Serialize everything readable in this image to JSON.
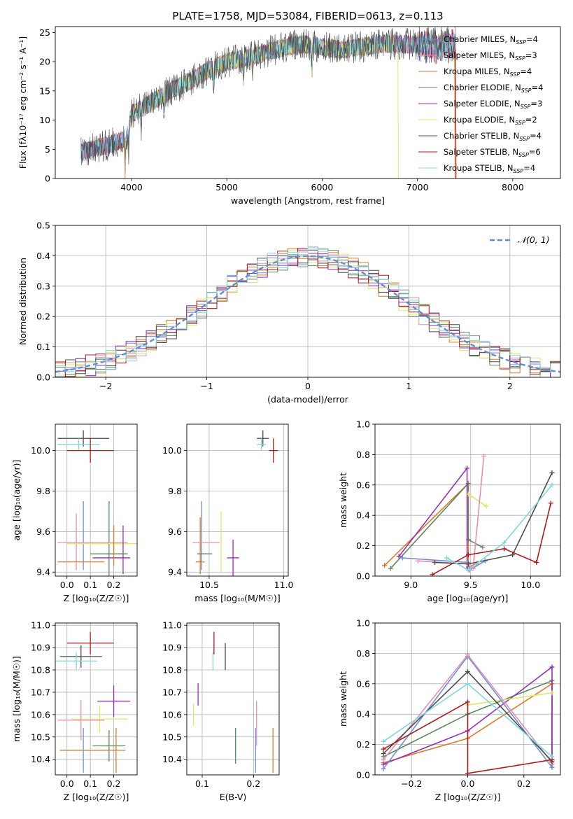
{
  "colors": {
    "Chabrier MILES": "#6f8fd8",
    "Salpeter MILES": "#e78fb4",
    "Kroupa MILES": "#e07b28",
    "Chabrier ELODIE": "#5a8a5a",
    "Salpeter ELODIE": "#9b2fb8",
    "Kroupa ELODIE": "#dfe86a",
    "Chabrier STELIB": "#4d4d4d",
    "Salpeter STELIB": "#b01c1c",
    "Kroupa STELIB": "#7fd8e0",
    "normal": "#5b8fd8"
  },
  "chart_data": [
    {
      "id": "spectrum",
      "type": "line",
      "title": "PLATE=1758, MJD=53084, FIBERID=0613, z=0.113",
      "xlabel": "wavelength [Angstrom, rest frame]",
      "ylabel": "Flux [fλ10⁻¹⁷ erg cm⁻² s⁻¹ A⁻¹]",
      "xlim": [
        3200,
        8500
      ],
      "ylim": [
        0,
        26
      ],
      "xticks": [
        4000,
        5000,
        6000,
        7000,
        8000
      ],
      "yticks": [
        0,
        5,
        10,
        15,
        20,
        25
      ],
      "grid": false,
      "legend_position": "right",
      "legend": [
        {
          "label": "Chabrier MILES, N",
          "sub": "SSP",
          "eq": "=4",
          "key": "Chabrier MILES"
        },
        {
          "label": "Salpeter MILES, N",
          "sub": "SSP",
          "eq": "=3",
          "key": "Salpeter MILES"
        },
        {
          "label": "Kroupa MILES, N",
          "sub": "SSP",
          "eq": "=4",
          "key": "Kroupa MILES"
        },
        {
          "label": "Chabrier ELODIE, N",
          "sub": "SSP",
          "eq": "=4",
          "key": "Chabrier ELODIE"
        },
        {
          "label": "Salpeter ELODIE, N",
          "sub": "SSP",
          "eq": "=3",
          "key": "Salpeter ELODIE"
        },
        {
          "label": "Kroupa ELODIE, N",
          "sub": "SSP",
          "eq": "=2",
          "key": "Kroupa ELODIE"
        },
        {
          "label": "Chabrier STELIB, N",
          "sub": "SSP",
          "eq": "=4",
          "key": "Chabrier STELIB"
        },
        {
          "label": "Salpeter STELIB, N",
          "sub": "SSP",
          "eq": "=6",
          "key": "Salpeter STELIB"
        },
        {
          "label": "Kroupa STELIB, N",
          "sub": "SSP",
          "eq": "=4",
          "key": "Kroupa STELIB"
        }
      ],
      "continuum": [
        [
          3400,
          4.3
        ],
        [
          3600,
          5
        ],
        [
          3800,
          6
        ],
        [
          3950,
          7
        ],
        [
          4000,
          11
        ],
        [
          4200,
          13
        ],
        [
          4400,
          15
        ],
        [
          4600,
          16.5
        ],
        [
          4800,
          18.5
        ],
        [
          5000,
          20
        ],
        [
          5200,
          20.5
        ],
        [
          5400,
          21.5
        ],
        [
          5600,
          22.5
        ],
        [
          5800,
          23
        ],
        [
          6000,
          22.5
        ],
        [
          6200,
          22
        ],
        [
          6400,
          22.5
        ],
        [
          6600,
          23
        ],
        [
          6800,
          23
        ],
        [
          7000,
          23
        ],
        [
          7200,
          22.5
        ],
        [
          7400,
          23
        ]
      ],
      "absorption_dips": [
        [
          3934,
          5
        ],
        [
          3969,
          4
        ],
        [
          4102,
          3
        ],
        [
          4340,
          3
        ],
        [
          4861,
          3
        ],
        [
          5175,
          3
        ],
        [
          5270,
          2
        ],
        [
          5893,
          4
        ],
        [
          6563,
          1.5
        ]
      ],
      "series_extents": {
        "Kroupa MILES": [
          3470,
          7400
        ],
        "Salpeter STELIB": [
          3470,
          7400
        ],
        "Chabrier STELIB": [
          3470,
          7400
        ],
        "Kroupa STELIB": [
          3470,
          7400
        ],
        "Chabrier MILES": [
          3470,
          7400
        ],
        "Salpeter MILES": [
          3470,
          7400
        ],
        "Chabrier ELODIE": [
          3470,
          7400
        ],
        "Salpeter ELODIE": [
          3470,
          7400
        ],
        "Kroupa ELODIE": [
          3920,
          6790
        ]
      }
    },
    {
      "id": "residuals",
      "type": "histogram",
      "xlabel": "(data-model)/error",
      "ylabel": "Normed distribution",
      "xlim": [
        -2.5,
        2.5
      ],
      "ylim": [
        0,
        0.5
      ],
      "xticks": [
        -2,
        -1,
        0,
        1,
        2
      ],
      "xtick_labels": [
        "−2",
        "−1",
        "0",
        "1",
        "2"
      ],
      "yticks": [
        0,
        0.1,
        0.2,
        0.3,
        0.4,
        0.5
      ],
      "grid": true,
      "legend_label": "𝒩(0, 1)",
      "legend_position": "top-right",
      "bin_width": 0.1
    },
    {
      "id": "age-vs-Z",
      "type": "scatter-errorbar",
      "xlabel": "Z [log₁₀(Z/Z☉)]",
      "ylabel": "age  [log₁₀(age/yr)]",
      "xlim": [
        -0.05,
        0.3
      ],
      "ylim": [
        9.38,
        10.13
      ],
      "xticks": [
        0,
        0.1,
        0.2
      ],
      "yticks": [
        9.4,
        9.6,
        9.8,
        10.0
      ],
      "grid": true,
      "points": [
        {
          "key": "Chabrier STELIB",
          "x": 0.07,
          "xerr": 0.11,
          "y": 10.06,
          "yerr": 0.04
        },
        {
          "key": "Kroupa STELIB",
          "x": 0.05,
          "xerr": 0.09,
          "y": 10.03,
          "yerr": 0.03
        },
        {
          "key": "Salpeter STELIB",
          "x": 0.1,
          "xerr": 0.1,
          "y": 10.0,
          "yerr": 0.06
        },
        {
          "key": "Chabrier MILES",
          "x": 0.07,
          "xerr": 0.005,
          "y": 9.58,
          "yerr": 0.17
        },
        {
          "key": "Salpeter MILES",
          "x": 0.04,
          "xerr": 0.005,
          "y": 9.55,
          "yerr": 0.14
        },
        {
          "key": "Chabrier ELODIE",
          "x": 0.18,
          "xerr": 0.005,
          "y": 9.55,
          "yerr": 0.2
        },
        {
          "key": "Kroupa ELODIE",
          "x": 0.17,
          "xerr": 0.17,
          "y": 9.54,
          "yerr": 0.005
        },
        {
          "key": "Salpeter MILES",
          "x": 0.11,
          "xerr": 0.15,
          "y": 9.545,
          "yerr": 0.005
        },
        {
          "key": "Salpeter ELODIE",
          "x": 0.24,
          "xerr": 0.005,
          "y": 9.51,
          "yerr": 0.12
        },
        {
          "key": "Chabrier ELODIE",
          "x": 0.18,
          "xerr": 0.08,
          "y": 9.49,
          "yerr": 0.005
        },
        {
          "key": "Salpeter ELODIE",
          "x": 0.19,
          "xerr": 0.08,
          "y": 9.47,
          "yerr": 0.005
        },
        {
          "key": "Kroupa MILES",
          "x": 0.2,
          "xerr": 0.005,
          "y": 9.53,
          "yerr": 0.1
        },
        {
          "key": "Kroupa MILES",
          "x": 0.06,
          "xerr": 0.1,
          "y": 9.45,
          "yerr": 0.005
        }
      ]
    },
    {
      "id": "age-vs-mass",
      "type": "scatter-errorbar",
      "xlabel": "mass [log₁₀(M/M☉)]",
      "ylabel": "",
      "xlim": [
        10.35,
        11.03
      ],
      "ylim": [
        9.38,
        10.13
      ],
      "xticks": [
        10.5,
        11.0
      ],
      "yticks": [
        9.4,
        9.6,
        9.8,
        10.0
      ],
      "grid": true,
      "points": [
        {
          "key": "Chabrier STELIB",
          "x": 10.86,
          "xerr": 0.04,
          "y": 10.06,
          "yerr": 0.04
        },
        {
          "key": "Kroupa STELIB",
          "x": 10.85,
          "xerr": 0.03,
          "y": 10.03,
          "yerr": 0.03
        },
        {
          "key": "Salpeter STELIB",
          "x": 10.93,
          "xerr": 0.03,
          "y": 10.0,
          "yerr": 0.06
        },
        {
          "key": "Chabrier MILES",
          "x": 10.45,
          "xerr": 0.005,
          "y": 9.58,
          "yerr": 0.17
        },
        {
          "key": "Kroupa MILES",
          "x": 10.44,
          "xerr": 0.005,
          "y": 9.53,
          "yerr": 0.14
        },
        {
          "key": "Salpeter MILES",
          "x": 10.48,
          "xerr": 0.09,
          "y": 9.545,
          "yerr": 0.005
        },
        {
          "key": "Kroupa ELODIE",
          "x": 10.58,
          "xerr": 0.005,
          "y": 9.55,
          "yerr": 0.15
        },
        {
          "key": "Chabrier ELODIE",
          "x": 10.47,
          "xerr": 0.05,
          "y": 9.49,
          "yerr": 0.005
        },
        {
          "key": "Salpeter ELODIE",
          "x": 10.66,
          "xerr": 0.04,
          "y": 9.47,
          "yerr": 0.09
        },
        {
          "key": "Kroupa MILES",
          "x": 10.44,
          "xerr": 0.03,
          "y": 9.45,
          "yerr": 0.005
        }
      ]
    },
    {
      "id": "weight-vs-age",
      "type": "line",
      "xlabel": "age  [log₁₀(age/yr)]",
      "ylabel": "mass weight",
      "xlim": [
        8.7,
        10.25
      ],
      "ylim": [
        0,
        1.0
      ],
      "xticks": [
        9.0,
        9.5,
        10.0
      ],
      "yticks": [
        0,
        0.2,
        0.4,
        0.6,
        0.8,
        1.0
      ],
      "grid": true,
      "series": [
        {
          "key": "Kroupa MILES",
          "x": [
            8.78,
            9.48,
            9.48,
            9.55
          ],
          "y": [
            0.07,
            0.61,
            0.06,
            0.08
          ]
        },
        {
          "key": "Chabrier ELODIE",
          "x": [
            8.83,
            9.48,
            9.48,
            9.6
          ],
          "y": [
            0.05,
            0.61,
            0.24,
            0.19
          ]
        },
        {
          "key": "Salpeter ELODIE",
          "x": [
            8.9,
            9.47,
            9.47
          ],
          "y": [
            0.13,
            0.71,
            0.05
          ]
        },
        {
          "key": "Kroupa ELODIE",
          "x": [
            9.48,
            9.63
          ],
          "y": [
            0.54,
            0.46
          ]
        },
        {
          "key": "Chabrier MILES",
          "x": [
            8.93,
            9.48,
            9.49,
            9.62
          ],
          "y": [
            0.12,
            0.09,
            0.04,
            0.1
          ]
        },
        {
          "key": "Salpeter MILES",
          "x": [
            9.06,
            9.47,
            9.52,
            9.61
          ],
          "y": [
            0.1,
            0.08,
            0.05,
            0.79
          ]
        },
        {
          "key": "Chabrier STELIB",
          "x": [
            9.2,
            9.48,
            9.85,
            10.18
          ],
          "y": [
            0.09,
            0.08,
            0.14,
            0.68
          ]
        },
        {
          "key": "Salpeter STELIB",
          "x": [
            9.18,
            9.48,
            9.78,
            10.05,
            10.17
          ],
          "y": [
            0.01,
            0.14,
            0.18,
            0.09,
            0.48
          ]
        },
        {
          "key": "Kroupa STELIB",
          "x": [
            9.3,
            9.48,
            9.78,
            10.18
          ],
          "y": [
            0.12,
            0.04,
            0.22,
            0.6
          ]
        }
      ]
    },
    {
      "id": "mass-vs-Z",
      "type": "scatter-errorbar",
      "xlabel": "Z [log₁₀(Z/Z☉)]",
      "ylabel": "mass [log₁₀(M/M☉)]",
      "xlim": [
        -0.05,
        0.3
      ],
      "ylim": [
        10.33,
        11.01
      ],
      "xticks": [
        0,
        0.1,
        0.2
      ],
      "yticks": [
        10.4,
        10.5,
        10.6,
        10.7,
        10.8,
        10.9,
        11.0
      ],
      "grid": true,
      "points": [
        {
          "key": "Salpeter STELIB",
          "x": 0.1,
          "xerr": 0.1,
          "y": 10.92,
          "yerr": 0.05
        },
        {
          "key": "Chabrier STELIB",
          "x": 0.06,
          "xerr": 0.09,
          "y": 10.86,
          "yerr": 0.05
        },
        {
          "key": "Kroupa STELIB",
          "x": 0.04,
          "xerr": 0.09,
          "y": 10.84,
          "yerr": 0.04
        },
        {
          "key": "Salpeter ELODIE",
          "x": 0.2,
          "xerr": 0.07,
          "y": 10.66,
          "yerr": 0.07
        },
        {
          "key": "Kroupa ELODIE",
          "x": 0.14,
          "xerr": 0.12,
          "y": 10.58,
          "yerr": 0.06
        },
        {
          "key": "Salpeter MILES",
          "x": 0.06,
          "xerr": 0.1,
          "y": 10.575,
          "yerr": 0.09
        },
        {
          "key": "Chabrier MILES",
          "x": 0.07,
          "xerr": 0.1,
          "y": 10.44,
          "yerr": 0.1
        },
        {
          "key": "Chabrier ELODIE",
          "x": 0.18,
          "xerr": 0.07,
          "y": 10.46,
          "yerr": 0.07
        },
        {
          "key": "Kroupa MILES",
          "x": 0.11,
          "xerr": 0.14,
          "y": 10.44,
          "yerr": 0.005
        },
        {
          "key": "Kroupa MILES",
          "x": 0.21,
          "xerr": 0.005,
          "y": 10.44,
          "yerr": 0.1
        }
      ]
    },
    {
      "id": "mass-vs-EBV",
      "type": "scatter-errorbar",
      "xlabel": "E(B-V)",
      "ylabel": "",
      "xlim": [
        0.07,
        0.25
      ],
      "ylim": [
        10.33,
        11.01
      ],
      "xticks": [
        0.1,
        0.2
      ],
      "yticks": [
        10.4,
        10.5,
        10.6,
        10.7,
        10.8,
        10.9,
        11.0
      ],
      "grid": true,
      "points": [
        {
          "key": "Salpeter STELIB",
          "x": 0.123,
          "y": 10.92,
          "yerr": 0.05
        },
        {
          "key": "Chabrier STELIB",
          "x": 0.145,
          "y": 10.86,
          "yerr": 0.06
        },
        {
          "key": "Kroupa STELIB",
          "x": 0.121,
          "y": 10.84,
          "yerr": 0.04
        },
        {
          "key": "Salpeter ELODIE",
          "x": 0.092,
          "y": 10.69,
          "yerr": 0.05
        },
        {
          "key": "Kroupa ELODIE",
          "x": 0.083,
          "y": 10.6,
          "yerr": 0.05
        },
        {
          "key": "Salpeter MILES",
          "x": 0.206,
          "y": 10.56,
          "yerr": 0.1
        },
        {
          "key": "Chabrier MILES",
          "x": 0.204,
          "y": 10.44,
          "yerr": 0.1
        },
        {
          "key": "Chabrier ELODIE",
          "x": 0.165,
          "y": 10.46,
          "yerr": 0.08
        },
        {
          "key": "Kroupa MILES",
          "x": 0.238,
          "y": 10.44,
          "yerr": 0.1
        }
      ]
    },
    {
      "id": "weight-vs-Z",
      "type": "line",
      "xlabel": "Z [log₁₀(Z/Z☉)]",
      "ylabel": "mass weight",
      "xlim": [
        -0.33,
        0.33
      ],
      "ylim": [
        0,
        1.0
      ],
      "xticks": [
        -0.2,
        0.0,
        0.2
      ],
      "xtick_labels": [
        "−0.2",
        "0.0",
        "0.2"
      ],
      "yticks": [
        0,
        0.2,
        0.4,
        0.6,
        0.8,
        1.0
      ],
      "grid": true,
      "series": [
        {
          "key": "Kroupa MILES",
          "x": [
            -0.3,
            0.0,
            0.3,
            0.3
          ],
          "y": [
            0.08,
            0.24,
            0.6,
            0.07
          ]
        },
        {
          "key": "Chabrier ELODIE",
          "x": [
            -0.3,
            0.0,
            0.3,
            0.3
          ],
          "y": [
            0.12,
            0.4,
            0.62,
            0.1
          ]
        },
        {
          "key": "Salpeter ELODIE",
          "x": [
            -0.3,
            0.0,
            0.3,
            0.3
          ],
          "y": [
            0.07,
            0.29,
            0.71,
            0.05
          ]
        },
        {
          "key": "Kroupa ELODIE",
          "x": [
            0.0,
            0.3
          ],
          "y": [
            0.46,
            0.54
          ]
        },
        {
          "key": "Chabrier MILES",
          "x": [
            -0.3,
            0.0,
            0.3
          ],
          "y": [
            0.04,
            0.78,
            0.05
          ]
        },
        {
          "key": "Salpeter MILES",
          "x": [
            -0.3,
            0.0,
            0.3
          ],
          "y": [
            0.1,
            0.79,
            0.08
          ]
        },
        {
          "key": "Chabrier STELIB",
          "x": [
            -0.3,
            0.0,
            0.3
          ],
          "y": [
            0.14,
            0.68,
            0.09
          ]
        },
        {
          "key": "Salpeter STELIB",
          "x": [
            -0.3,
            0.0,
            0.0,
            0.3
          ],
          "y": [
            0.17,
            0.48,
            0.01,
            0.1
          ]
        },
        {
          "key": "Kroupa STELIB",
          "x": [
            -0.3,
            0.0,
            0.3
          ],
          "y": [
            0.22,
            0.6,
            0.12
          ]
        }
      ]
    }
  ]
}
